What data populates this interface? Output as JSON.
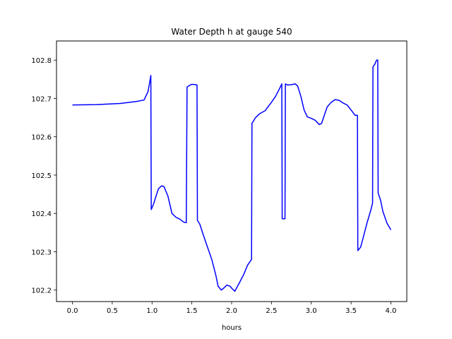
{
  "chart_data": {
    "type": "line",
    "title": "Water Depth h at gauge 540",
    "xlabel": "hours",
    "ylabel": "",
    "xlim": [
      -0.2,
      4.2
    ],
    "ylim": [
      102.17,
      102.85
    ],
    "xticks": [
      0.0,
      0.5,
      1.0,
      1.5,
      2.0,
      2.5,
      3.0,
      3.5,
      4.0
    ],
    "xtick_labels": [
      "0.0",
      "0.5",
      "1.0",
      "1.5",
      "2.0",
      "2.5",
      "3.0",
      "3.5",
      "4.0"
    ],
    "yticks": [
      102.2,
      102.3,
      102.4,
      102.5,
      102.6,
      102.7,
      102.8
    ],
    "ytick_labels": [
      "102.2",
      "102.3",
      "102.4",
      "102.5",
      "102.6",
      "102.7",
      "102.8"
    ],
    "grid": false,
    "legend": "none",
    "series": [
      {
        "color": "#0000ff",
        "points": [
          [
            0.0,
            102.683
          ],
          [
            0.3,
            102.684
          ],
          [
            0.6,
            102.687
          ],
          [
            0.8,
            102.692
          ],
          [
            0.9,
            102.696
          ],
          [
            0.95,
            102.718
          ],
          [
            0.985,
            102.76
          ],
          [
            0.99,
            102.41
          ],
          [
            1.02,
            102.425
          ],
          [
            1.05,
            102.445
          ],
          [
            1.08,
            102.464
          ],
          [
            1.12,
            102.472
          ],
          [
            1.15,
            102.47
          ],
          [
            1.2,
            102.445
          ],
          [
            1.25,
            102.4
          ],
          [
            1.3,
            102.39
          ],
          [
            1.35,
            102.385
          ],
          [
            1.4,
            102.377
          ],
          [
            1.43,
            102.376
          ],
          [
            1.44,
            102.73
          ],
          [
            1.48,
            102.735
          ],
          [
            1.5,
            102.737
          ],
          [
            1.55,
            102.736
          ],
          [
            1.565,
            102.735
          ],
          [
            1.57,
            102.382
          ],
          [
            1.6,
            102.372
          ],
          [
            1.65,
            102.34
          ],
          [
            1.7,
            102.31
          ],
          [
            1.75,
            102.28
          ],
          [
            1.8,
            102.24
          ],
          [
            1.83,
            102.21
          ],
          [
            1.87,
            102.2
          ],
          [
            1.9,
            102.205
          ],
          [
            1.94,
            102.213
          ],
          [
            1.98,
            102.21
          ],
          [
            2.0,
            102.205
          ],
          [
            2.04,
            102.197
          ],
          [
            2.1,
            102.22
          ],
          [
            2.15,
            102.24
          ],
          [
            2.2,
            102.265
          ],
          [
            2.25,
            102.28
          ],
          [
            2.255,
            102.635
          ],
          [
            2.3,
            102.65
          ],
          [
            2.35,
            102.66
          ],
          [
            2.42,
            102.668
          ],
          [
            2.5,
            102.69
          ],
          [
            2.55,
            102.705
          ],
          [
            2.6,
            102.725
          ],
          [
            2.63,
            102.738
          ],
          [
            2.635,
            102.386
          ],
          [
            2.67,
            102.386
          ],
          [
            2.675,
            102.738
          ],
          [
            2.7,
            102.735
          ],
          [
            2.75,
            102.736
          ],
          [
            2.8,
            102.738
          ],
          [
            2.83,
            102.732
          ],
          [
            2.87,
            102.705
          ],
          [
            2.91,
            102.67
          ],
          [
            2.95,
            102.652
          ],
          [
            3.0,
            102.648
          ],
          [
            3.05,
            102.643
          ],
          [
            3.1,
            102.632
          ],
          [
            3.13,
            102.635
          ],
          [
            3.17,
            102.66
          ],
          [
            3.2,
            102.678
          ],
          [
            3.25,
            102.69
          ],
          [
            3.3,
            102.697
          ],
          [
            3.35,
            102.695
          ],
          [
            3.4,
            102.688
          ],
          [
            3.45,
            102.683
          ],
          [
            3.5,
            102.67
          ],
          [
            3.55,
            102.656
          ],
          [
            3.58,
            102.656
          ],
          [
            3.585,
            102.303
          ],
          [
            3.62,
            102.312
          ],
          [
            3.65,
            102.335
          ],
          [
            3.7,
            102.375
          ],
          [
            3.75,
            102.41
          ],
          [
            3.77,
            102.427
          ],
          [
            3.775,
            102.782
          ],
          [
            3.8,
            102.79
          ],
          [
            3.82,
            102.8
          ],
          [
            3.835,
            102.8
          ],
          [
            3.84,
            102.453
          ],
          [
            3.87,
            102.435
          ],
          [
            3.9,
            102.405
          ],
          [
            3.95,
            102.375
          ],
          [
            4.0,
            102.357
          ]
        ]
      }
    ]
  }
}
